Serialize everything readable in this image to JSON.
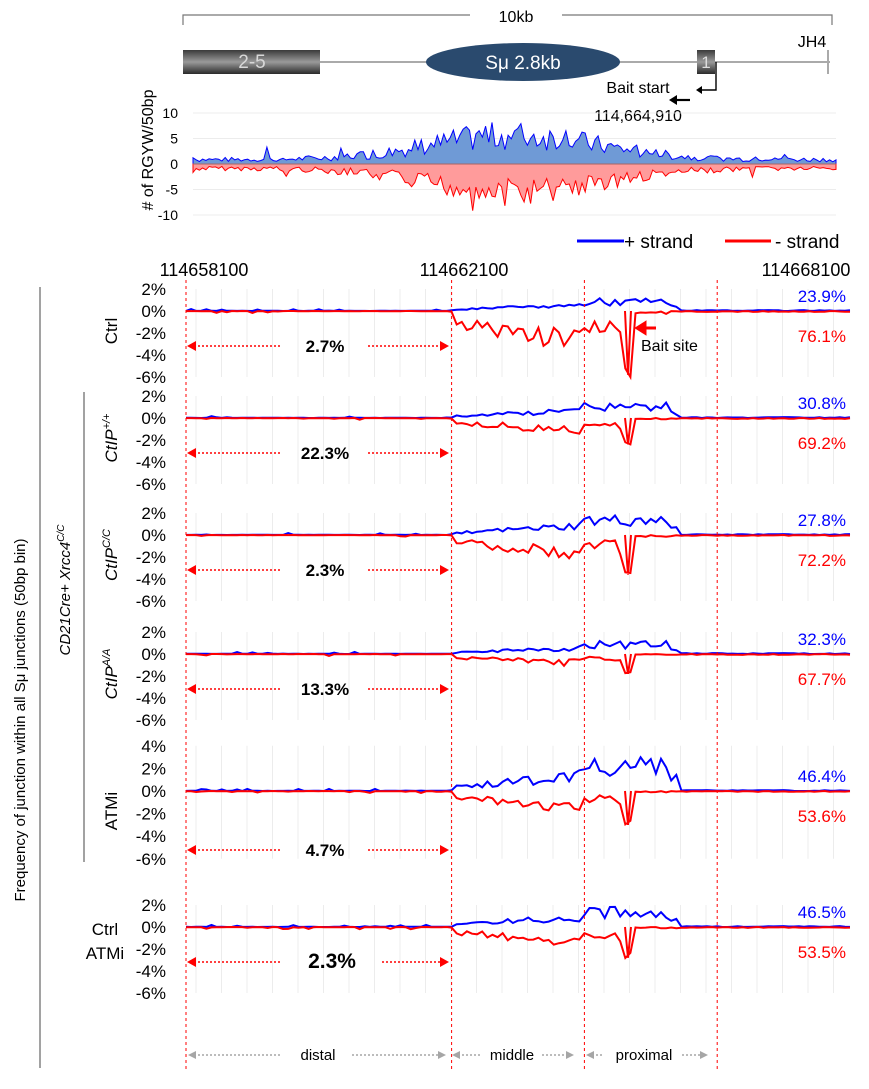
{
  "colors": {
    "plus": "#0000ff",
    "minus": "#ff0000",
    "rgyw_plus_fill": "#6f9ad6",
    "rgyw_minus_fill": "#ff9b9b",
    "segment_line": "#ff0000",
    "grid": "#d9d9d9",
    "su_ellipse": "#2a4a6e",
    "segment_label_arrow": "#a6a6a6"
  },
  "locus": {
    "scale_label": "10kb",
    "exon_label": "2-5",
    "su_label": "Sμ 2.8kb",
    "exon1_label": "1",
    "jh4_label": "JH4",
    "bait_start_label": "Bait start",
    "bait_coord": "114,664,910"
  },
  "rgyw": {
    "ylabel": "# of RGYW/50bp",
    "ticks": [
      "10",
      "5",
      "0",
      "-5",
      "-10"
    ],
    "legend_plus": "+ strand",
    "legend_minus": "- strand"
  },
  "x_axis": {
    "ticks": [
      "114658100",
      "114662100",
      "114668100"
    ]
  },
  "y_axis_label": "Frequency of junction within all Sμ junctions (50bp bin)",
  "genotype_group_label": "CD21Cre+ Xrcc4",
  "genotype_group_sup": "C/C",
  "y_ticks_small": [
    "2%",
    "0%",
    "-2%",
    "-4%",
    "-6%"
  ],
  "y_ticks_large": [
    "4%",
    "2%",
    "0%",
    "-2%",
    "-4%",
    "-6%"
  ],
  "bait_site_label": "Bait site",
  "segment_labels": [
    "distal",
    "middle",
    "proximal"
  ],
  "chart_data": {
    "type": "area",
    "x_range": [
      114658100,
      114668100
    ],
    "boundaries": [
      114658100,
      114662100,
      114664100,
      114666100
    ],
    "series": [
      {
        "name": "Ctrl",
        "base": "",
        "sup": "",
        "italic": false,
        "plus_percent": "23.9%",
        "minus_percent": "76.1%",
        "distal_percent": "2.7%",
        "ylim": [
          -6,
          2
        ],
        "plus_peak": 1.2,
        "minus_peak": -5.8
      },
      {
        "name": "CtIP+/+",
        "base": "CtIP",
        "sup": "+/+",
        "italic": true,
        "plus_percent": "30.8%",
        "minus_percent": "69.2%",
        "distal_percent": "22.3%",
        "ylim": [
          -6,
          2
        ],
        "plus_peak": 1.5,
        "minus_peak": -2.4
      },
      {
        "name": "CtIPC/C",
        "base": "CtIP",
        "sup": "C/C",
        "italic": true,
        "plus_percent": "27.8%",
        "minus_percent": "72.2%",
        "distal_percent": "2.3%",
        "ylim": [
          -6,
          2
        ],
        "plus_peak": 1.8,
        "minus_peak": -3.6
      },
      {
        "name": "CtIPA/A",
        "base": "CtIP",
        "sup": "A/A",
        "italic": true,
        "plus_percent": "32.3%",
        "minus_percent": "67.7%",
        "distal_percent": "13.3%",
        "ylim": [
          -6,
          2
        ],
        "plus_peak": 1.2,
        "minus_peak": -1.8
      },
      {
        "name": "ATMi",
        "base": "ATMi",
        "sup": "",
        "italic": false,
        "plus_percent": "46.4%",
        "minus_percent": "53.6%",
        "distal_percent": "4.7%",
        "ylim": [
          -6,
          4
        ],
        "plus_peak": 3.0,
        "minus_peak": -3.0
      },
      {
        "name": "Ctrl ATMi",
        "base": "Ctrl",
        "base2": "ATMi",
        "sup": "",
        "italic": false,
        "plus_percent": "46.5%",
        "minus_percent": "53.5%",
        "distal_percent": "2.3%",
        "ylim": [
          -6,
          2
        ],
        "plus_peak": 2.0,
        "minus_peak": -2.8
      }
    ]
  }
}
